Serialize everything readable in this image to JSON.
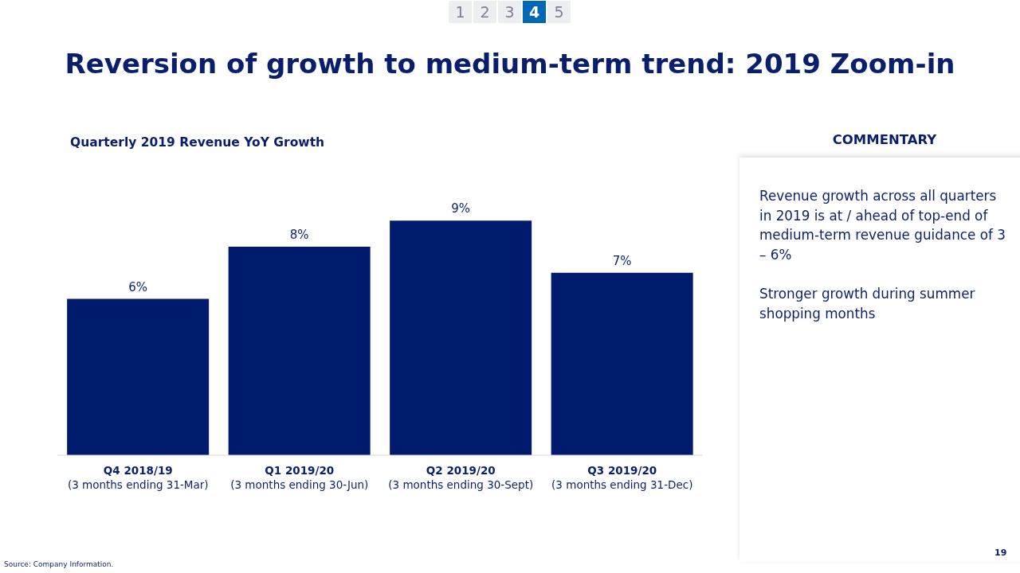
{
  "chart_data": {
    "type": "bar",
    "title": "Reversion of growth to medium-term trend: 2019 Zoom-in",
    "subtitle": "Quarterly 2019 Revenue YoY Growth",
    "categories": [
      "Q4 2018/19\n(3 months ending 31-Mar)",
      "Q1 2019/20\n(3 months ending 30-Jun)",
      "Q2 2019/20\n(3 months ending 30-Sept)",
      "Q3 2019/20\n(3 months ending 31-Dec)"
    ],
    "values": [
      6,
      8,
      9,
      7
    ],
    "value_labels": [
      "6%",
      "8%",
      "9%",
      "7%"
    ],
    "color": "#001a6e",
    "annotations": [
      "1",
      "2",
      "3",
      "4",
      "5",
      "COMMENTARY",
      "Revenue growth across all quarters in 2019 is at / ahead of top-end of medium-term revenue guidance of 3 – 6%",
      "Stronger growth during summer shopping months",
      "Source: Company Information.",
      "19"
    ]
  }
}
